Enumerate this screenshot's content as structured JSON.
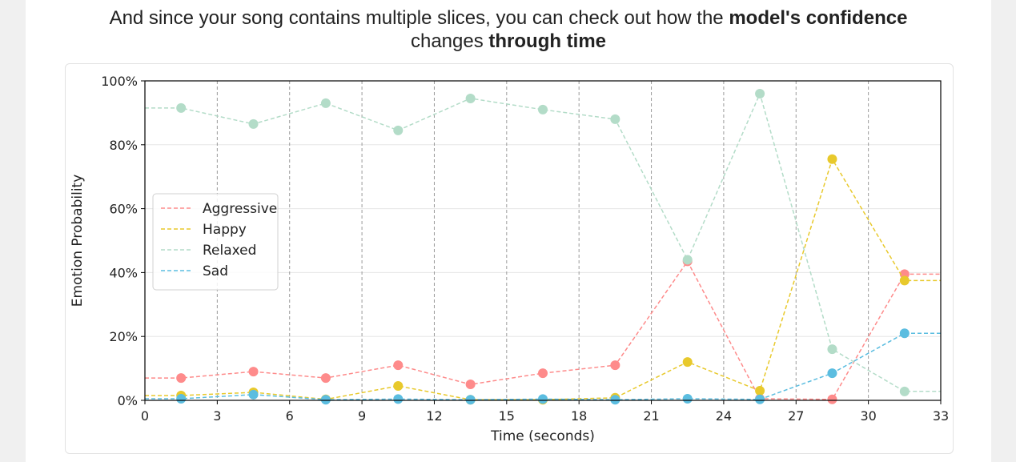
{
  "header": {
    "line1_prefix": "And since your song contains multiple slices, you can check out how the ",
    "line1_bold": "model's confidence",
    "line2_prefix": "changes ",
    "line2_bold": "through time"
  },
  "chart_data": {
    "type": "line",
    "title": "",
    "xlabel": "Time (seconds)",
    "ylabel": "Emotion Probability",
    "xlim": [
      0,
      33
    ],
    "ylim": [
      0,
      100
    ],
    "x_ticks": [
      0,
      3,
      6,
      9,
      12,
      15,
      18,
      21,
      24,
      27,
      30,
      33
    ],
    "x_tick_labels": [
      "0",
      "3",
      "6",
      "9",
      "12",
      "15",
      "18",
      "21",
      "24",
      "27",
      "30",
      "33"
    ],
    "y_ticks": [
      0,
      20,
      40,
      60,
      80,
      100
    ],
    "y_tick_labels": [
      "0%",
      "20%",
      "40%",
      "60%",
      "80%",
      "100%"
    ],
    "vertical_separators": [
      3,
      6,
      9,
      12,
      15,
      18,
      21,
      24,
      27,
      30
    ],
    "grid": "horizontal",
    "legend_position": "center-left",
    "line_style": "dashed",
    "x": [
      0,
      1.5,
      4.5,
      7.5,
      10.5,
      13.5,
      16.5,
      19.5,
      22.5,
      25.5,
      28.5,
      31.5,
      33
    ],
    "marker_indices": [
      1,
      2,
      3,
      4,
      5,
      6,
      7,
      8,
      9,
      10,
      11
    ],
    "series": [
      {
        "name": "Aggressive",
        "color": "#fe8b8b",
        "values": [
          7,
          7,
          9,
          7,
          11,
          5,
          8.5,
          11,
          43.5,
          0.5,
          0.3,
          39.5,
          39.5
        ]
      },
      {
        "name": "Happy",
        "color": "#e8c92c",
        "values": [
          1.5,
          1.5,
          2.5,
          0.3,
          4.5,
          0.2,
          0.2,
          0.8,
          12,
          3,
          75.5,
          37.5,
          37.5
        ]
      },
      {
        "name": "Relaxed",
        "color": "#b3dcc8",
        "values": [
          91.5,
          91.5,
          86.5,
          93,
          84.5,
          94.5,
          91,
          88,
          44,
          96,
          16,
          2.8,
          2.8
        ]
      },
      {
        "name": "Sad",
        "color": "#5bbde0",
        "values": [
          0.5,
          0.5,
          1.8,
          0.2,
          0.4,
          0.2,
          0.4,
          0.2,
          0.5,
          0.3,
          8.5,
          21,
          21
        ]
      }
    ]
  }
}
